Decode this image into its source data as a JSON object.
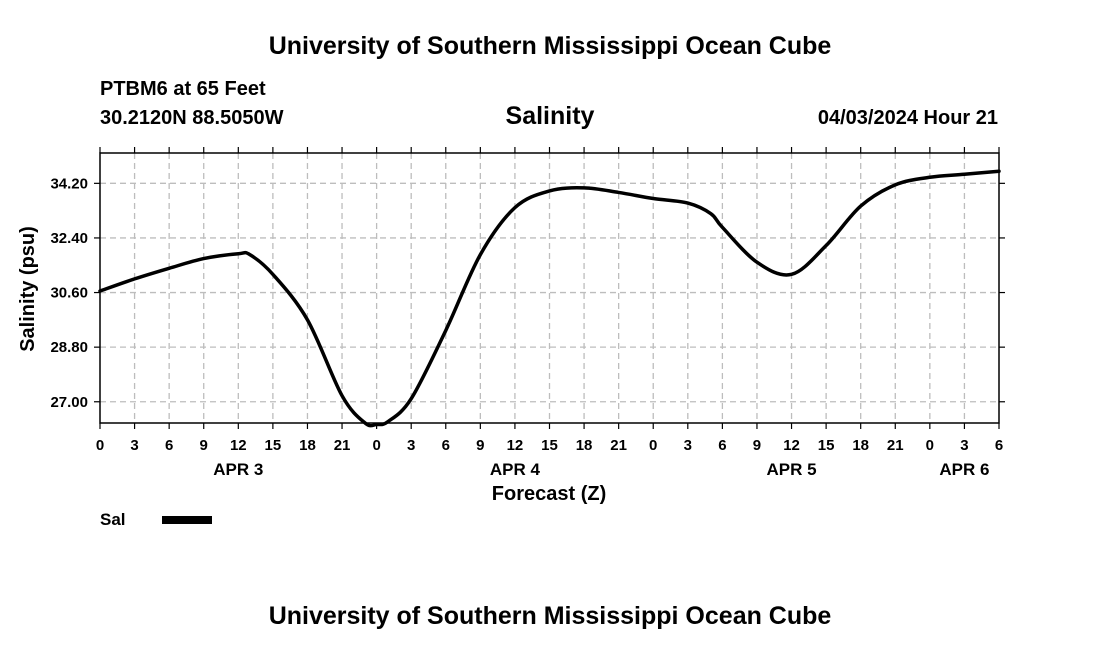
{
  "header": {
    "title": "University of Southern Mississippi Ocean Cube",
    "station_line": "PTBM6 at 65 Feet",
    "coords_line": "30.2120N  88.5050W",
    "timestamp": "04/03/2024 Hour 21"
  },
  "footer": {
    "title": "University of Southern Mississippi Ocean Cube"
  },
  "chart_data": {
    "type": "line",
    "title": "Salinity",
    "xlabel": "Forecast (Z)",
    "ylabel": "Salinity (psu)",
    "x_unit": "hours from APR 3 00Z",
    "xlim": [
      0,
      78
    ],
    "ylim": [
      26.3,
      35.2
    ],
    "yticks": [
      {
        "value": 27.0,
        "label": "27.00"
      },
      {
        "value": 28.8,
        "label": "28.80"
      },
      {
        "value": 30.6,
        "label": "30.60"
      },
      {
        "value": 32.4,
        "label": "32.40"
      },
      {
        "value": 34.2,
        "label": "34.20"
      }
    ],
    "xticks": [
      {
        "value": 0,
        "label": "0"
      },
      {
        "value": 3,
        "label": "3"
      },
      {
        "value": 6,
        "label": "6"
      },
      {
        "value": 9,
        "label": "9"
      },
      {
        "value": 12,
        "label": "12"
      },
      {
        "value": 15,
        "label": "15"
      },
      {
        "value": 18,
        "label": "18"
      },
      {
        "value": 21,
        "label": "21"
      },
      {
        "value": 24,
        "label": "0"
      },
      {
        "value": 27,
        "label": "3"
      },
      {
        "value": 30,
        "label": "6"
      },
      {
        "value": 33,
        "label": "9"
      },
      {
        "value": 36,
        "label": "12"
      },
      {
        "value": 39,
        "label": "15"
      },
      {
        "value": 42,
        "label": "18"
      },
      {
        "value": 45,
        "label": "21"
      },
      {
        "value": 48,
        "label": "0"
      },
      {
        "value": 51,
        "label": "3"
      },
      {
        "value": 54,
        "label": "6"
      },
      {
        "value": 57,
        "label": "9"
      },
      {
        "value": 60,
        "label": "12"
      },
      {
        "value": 63,
        "label": "15"
      },
      {
        "value": 66,
        "label": "18"
      },
      {
        "value": 69,
        "label": "21"
      },
      {
        "value": 72,
        "label": "0"
      },
      {
        "value": 75,
        "label": "3"
      },
      {
        "value": 78,
        "label": "6"
      }
    ],
    "day_labels": [
      {
        "value": 12,
        "label": "APR 3"
      },
      {
        "value": 36,
        "label": "APR 4"
      },
      {
        "value": 60,
        "label": "APR 5"
      },
      {
        "value": 75,
        "label": "APR 6"
      }
    ],
    "grid": true,
    "series": [
      {
        "name": "Sal",
        "color": "#000000",
        "x": [
          0,
          3,
          6,
          9,
          12,
          13,
          15,
          18,
          21,
          23,
          24,
          25,
          27,
          30,
          33,
          36,
          39,
          42,
          45,
          48,
          51,
          53,
          54,
          57,
          60,
          63,
          66,
          69,
          72,
          75,
          78
        ],
        "values": [
          30.65,
          31.05,
          31.4,
          31.72,
          31.88,
          31.85,
          31.2,
          29.7,
          27.2,
          26.3,
          26.25,
          26.35,
          27.1,
          29.35,
          31.85,
          33.4,
          33.95,
          34.05,
          33.9,
          33.7,
          33.55,
          33.2,
          32.75,
          31.6,
          31.2,
          32.15,
          33.45,
          34.15,
          34.4,
          34.5,
          34.6
        ]
      }
    ],
    "legend": {
      "placement": "bottom-left",
      "entries": [
        {
          "label": "Sal",
          "color": "#000000"
        }
      ]
    }
  }
}
